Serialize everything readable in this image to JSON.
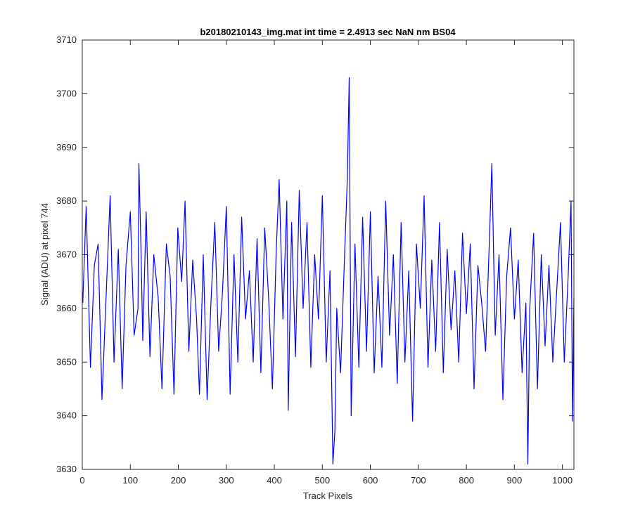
{
  "chart_data": {
    "type": "line",
    "title": "b20180210143_img.mat int time = 2.4913 sec  NaN nm BS04",
    "xlabel": "Track Pixels",
    "ylabel": "Signal (ADU) at pixel 744",
    "xlim": [
      0,
      1024
    ],
    "ylim": [
      3630,
      3710
    ],
    "xticks": [
      0,
      100,
      200,
      300,
      400,
      500,
      600,
      700,
      800,
      900,
      1000
    ],
    "yticks": [
      3630,
      3640,
      3650,
      3660,
      3670,
      3680,
      3690,
      3700,
      3710
    ],
    "grid": false,
    "line_color": "#0000ff",
    "series": [
      {
        "x": [
          1,
          8,
          17,
          25,
          33,
          41,
          50,
          58,
          66,
          75,
          83,
          91,
          100,
          108,
          116,
          118,
          122,
          126,
          133,
          141,
          149,
          158,
          166,
          175,
          183,
          191,
          199,
          207,
          214,
          222,
          230,
          238,
          244,
          252,
          260,
          268,
          276,
          284,
          292,
          300,
          308,
          316,
          324,
          332,
          340,
          348,
          356,
          364,
          372,
          380,
          388,
          396,
          404,
          410,
          418,
          426,
          429,
          436,
          444,
          452,
          460,
          468,
          476,
          484,
          492,
          500,
          508,
          516,
          522,
          526,
          530,
          538,
          546,
          552,
          556,
          560,
          568,
          576,
          584,
          592,
          600,
          608,
          616,
          624,
          632,
          640,
          648,
          656,
          664,
          672,
          680,
          688,
          696,
          704,
          712,
          720,
          728,
          736,
          744,
          752,
          760,
          768,
          776,
          784,
          792,
          800,
          808,
          816,
          824,
          832,
          840,
          848,
          853,
          860,
          868,
          876,
          884,
          892,
          900,
          908,
          916,
          924,
          928,
          932,
          940,
          948,
          956,
          964,
          972,
          980,
          988,
          996,
          1004,
          1012,
          1018,
          1021,
          1024
        ],
        "y": [
          3661,
          3679,
          3649,
          3668,
          3672,
          3643,
          3663,
          3681,
          3650,
          3671,
          3645,
          3668,
          3678,
          3655,
          3660,
          3687,
          3672,
          3654,
          3678,
          3651,
          3670,
          3662,
          3645,
          3672,
          3666,
          3644,
          3675,
          3665,
          3680,
          3652,
          3669,
          3658,
          3644,
          3670,
          3643,
          3661,
          3676,
          3652,
          3663,
          3679,
          3644,
          3670,
          3650,
          3677,
          3658,
          3667,
          3650,
          3673,
          3648,
          3675,
          3662,
          3645,
          3671,
          3684,
          3658,
          3680,
          3641,
          3676,
          3651,
          3682,
          3660,
          3676,
          3649,
          3670,
          3658,
          3681,
          3650,
          3667,
          3631,
          3637,
          3660,
          3648,
          3669,
          3684,
          3703,
          3640,
          3672,
          3649,
          3677,
          3652,
          3678,
          3648,
          3666,
          3649,
          3680,
          3655,
          3670,
          3646,
          3676,
          3650,
          3667,
          3639,
          3672,
          3660,
          3681,
          3649,
          3669,
          3652,
          3676,
          3648,
          3671,
          3656,
          3667,
          3650,
          3674,
          3659,
          3672,
          3645,
          3668,
          3661,
          3652,
          3673,
          3687,
          3655,
          3670,
          3643,
          3666,
          3675,
          3658,
          3669,
          3648,
          3661,
          3631,
          3660,
          3674,
          3645,
          3670,
          3653,
          3668,
          3650,
          3663,
          3676,
          3650,
          3666,
          3680,
          3639,
          3662
        ]
      }
    ]
  }
}
